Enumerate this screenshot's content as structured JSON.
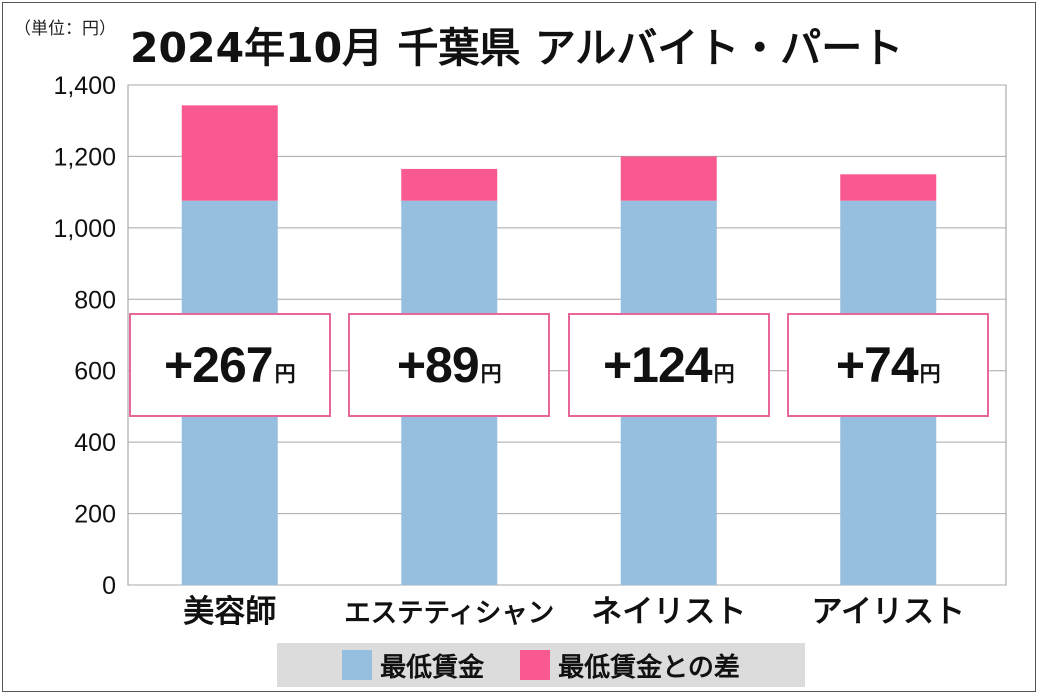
{
  "unit_label": "（単位：円）",
  "title": "2024年10月 千葉県 アルバイト・パート",
  "colors": {
    "min_wage": "#95bedf",
    "diff": "#f75990",
    "box_border": "#e8679a"
  },
  "chart_data": {
    "type": "bar",
    "stacked": true,
    "title": "2024年10月 千葉県 アルバイト・パート",
    "categories": [
      "美容師",
      "エステティシャン",
      "ネイリスト",
      "アイリスト"
    ],
    "series": [
      {
        "name": "最低賃金",
        "values": [
          1076,
          1076,
          1076,
          1076
        ]
      },
      {
        "name": "最低賃金との差",
        "values": [
          267,
          89,
          124,
          74
        ]
      }
    ],
    "ylim": [
      0,
      1400
    ],
    "yticks": [
      "0",
      "200",
      "400",
      "600",
      "800",
      "1,000",
      "1,200",
      "1,400"
    ],
    "ytick_values": [
      0,
      200,
      400,
      600,
      800,
      1000,
      1200,
      1400
    ],
    "grid": true,
    "legend": "bottom"
  },
  "diff_labels": [
    {
      "prefix": "+",
      "value": "267",
      "unit": "円"
    },
    {
      "prefix": "+",
      "value": "89",
      "unit": "円"
    },
    {
      "prefix": "+",
      "value": "124",
      "unit": "円"
    },
    {
      "prefix": "+",
      "value": "74",
      "unit": "円"
    }
  ],
  "legend": {
    "items": [
      "最低賃金",
      "最低賃金との差"
    ]
  }
}
